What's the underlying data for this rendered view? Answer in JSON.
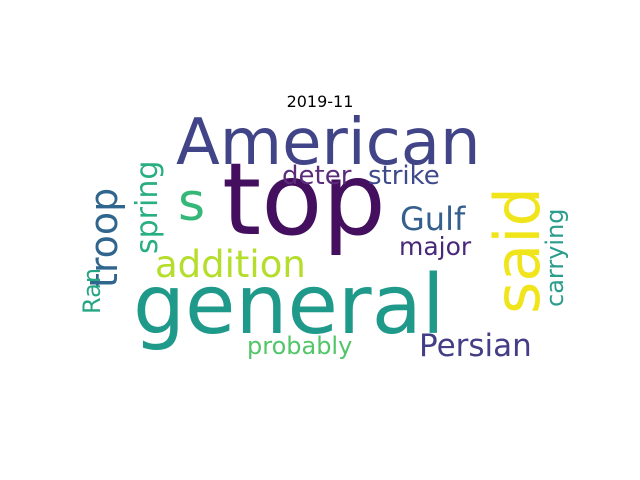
{
  "title": "2019-11",
  "words": [
    {
      "text": "top",
      "color": "#440f5e"
    },
    {
      "text": "general",
      "color": "#1f9a8a"
    },
    {
      "text": "American",
      "color": "#414487"
    },
    {
      "text": "said",
      "color": "#f0e51b"
    },
    {
      "text": "s",
      "color": "#35b779"
    },
    {
      "text": "troop",
      "color": "#30658e"
    },
    {
      "text": "addition",
      "color": "#b5dd2c"
    },
    {
      "text": "Gulf",
      "color": "#355f8d"
    },
    {
      "text": "Persian",
      "color": "#433e85"
    },
    {
      "text": "spring",
      "color": "#28ae80"
    },
    {
      "text": "deter",
      "color": "#5c2c7a"
    },
    {
      "text": "strike",
      "color": "#3f4a8a"
    },
    {
      "text": "major",
      "color": "#482878"
    },
    {
      "text": "probably",
      "color": "#52c569"
    },
    {
      "text": "carrying",
      "color": "#2a9d8c"
    },
    {
      "text": "Ran",
      "color": "#26a584"
    }
  ]
}
